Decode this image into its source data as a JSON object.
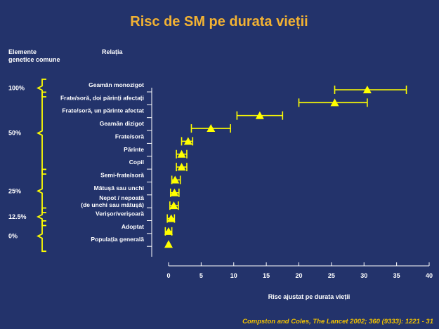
{
  "colors": {
    "background": "#23336b",
    "title": "#f2b233",
    "marker": "#ffff00",
    "axis": "#ffffff",
    "citation": "#f2c200"
  },
  "labels": {
    "elements_header_line1": "Elemente",
    "elements_header_line2": "genetice comune",
    "relation_header": "Relația",
    "citation": "Compston and Coles, The Lancet  2002; 360 (9333): 1221 - 31"
  },
  "share_groups": [
    {
      "label": "100%",
      "first": 0,
      "last": 0
    },
    {
      "label": "50%",
      "first": 1,
      "last": 6
    },
    {
      "label": "25%",
      "first": 7,
      "last": 9
    },
    {
      "label": "12.5%",
      "first": 10,
      "last": 10
    },
    {
      "label": "0%",
      "first": 11,
      "last": 12
    }
  ],
  "chart_data": {
    "type": "scatter",
    "title": "Risc de SM pe durata vieții",
    "xlabel": "Risc ajustat pe durata vieții",
    "ylabel": "",
    "xlim": [
      0,
      40
    ],
    "xticks": [
      0,
      5,
      10,
      15,
      20,
      25,
      30,
      35,
      40
    ],
    "categories": [
      "Geamăn monozigot",
      "Frate/soră, doi părinți afectați",
      "Frate/soră, un părinte afectat",
      "Geamăn dizigot",
      "Frate/soră",
      "Părinte",
      "Copil",
      "Semi-frate/soră",
      "Mătușă sau unchi",
      "Nepot / nepoată\n(de unchi sau mătușă)",
      "Verișor/verișoară",
      "Adoptat",
      "Populația generală"
    ],
    "series": [
      {
        "values": [
          30.5,
          25.5,
          14,
          6.5,
          3,
          2,
          2,
          1,
          0.9,
          0.8,
          0.4,
          0,
          0
        ],
        "ci_low": [
          25.5,
          20,
          10.5,
          3.5,
          2,
          1.2,
          1.2,
          0.5,
          0.3,
          0.2,
          -0.2,
          -0.5,
          null
        ],
        "ci_high": [
          36.5,
          30.5,
          17.5,
          9.5,
          3.7,
          2.8,
          2.8,
          1.8,
          1.6,
          1.5,
          0.9,
          0.5,
          null
        ]
      }
    ]
  }
}
